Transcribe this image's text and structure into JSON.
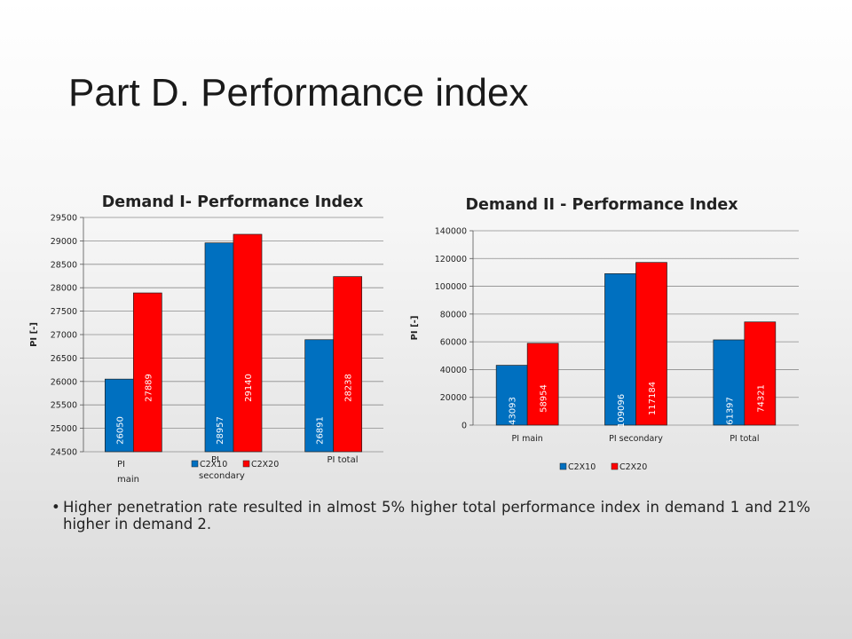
{
  "slide": {
    "title": "Part D. Performance index",
    "bullet": "Higher penetration rate resulted in almost 5% higher total performance index in demand 1 and 21% higher in demand 2."
  },
  "chart_data": [
    {
      "type": "bar",
      "title": "Demand I- Performance Index",
      "ylabel": "PI [-]",
      "categories": [
        "PI main",
        "PI secondary",
        "PI total"
      ],
      "ylim": [
        24500,
        29500
      ],
      "ytick_step": 500,
      "series": [
        {
          "name": "C2X10",
          "color": "#0070C0",
          "values": [
            26050,
            28957,
            26891
          ]
        },
        {
          "name": "C2X20",
          "color": "#FF0000",
          "values": [
            27889,
            29140,
            28238
          ]
        }
      ],
      "legend": "bottom",
      "grid": true
    },
    {
      "type": "bar",
      "title": "Demand II - Performance Index",
      "ylabel": "PI [-]",
      "categories": [
        "PI main",
        "PI secondary",
        "PI total"
      ],
      "ylim": [
        0,
        140000
      ],
      "ytick_step": 20000,
      "series": [
        {
          "name": "C2X10",
          "color": "#0070C0",
          "values": [
            43093,
            109096,
            61397
          ]
        },
        {
          "name": "C2X20",
          "color": "#FF0000",
          "values": [
            58954,
            117184,
            74321
          ]
        }
      ],
      "legend": "bottom",
      "grid": true
    }
  ]
}
